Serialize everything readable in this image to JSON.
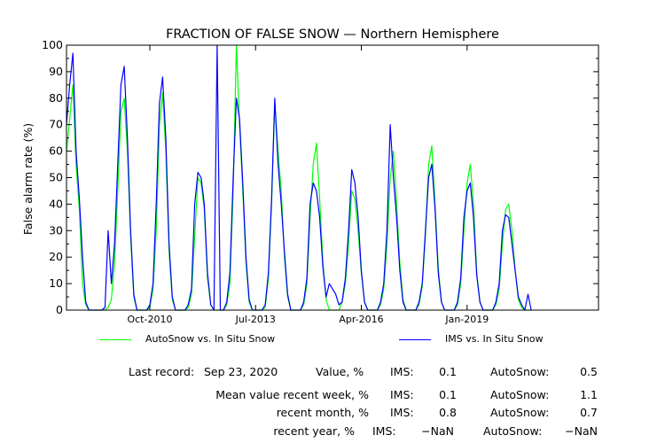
{
  "chart_data": {
    "type": "line",
    "title": "FRACTION OF FALSE SNOW — Northern Hemisphere",
    "ylabel": "False alarm rate (%)",
    "xlabel": "",
    "ylim": [
      0,
      100
    ],
    "yticks": [
      0,
      10,
      20,
      30,
      40,
      50,
      60,
      70,
      80,
      90,
      100
    ],
    "xlim": [
      "2008-08",
      "2022-06"
    ],
    "xticks": [
      {
        "date": "2010-10",
        "label": "Oct-2010"
      },
      {
        "date": "2013-07",
        "label": "Jul-2013"
      },
      {
        "date": "2016-04",
        "label": "Apr-2016"
      },
      {
        "date": "2019-01",
        "label": "Jan-2019"
      }
    ],
    "grid": false,
    "legend_position": "bottom",
    "series": [
      {
        "name": "AutoSnow vs. In Situ Snow",
        "color": "#00ff00",
        "x": [
          "2008-08",
          "2008-09",
          "2008-10",
          "2008-11",
          "2008-12",
          "2009-01",
          "2009-02",
          "2009-03",
          "2009-04",
          "2009-05",
          "2009-06",
          "2009-07",
          "2009-08",
          "2009-09",
          "2009-10",
          "2009-11",
          "2009-12",
          "2010-01",
          "2010-02",
          "2010-03",
          "2010-04",
          "2010-05",
          "2010-06",
          "2010-07",
          "2010-08",
          "2010-09",
          "2010-10",
          "2010-11",
          "2010-12",
          "2011-01",
          "2011-02",
          "2011-03",
          "2011-04",
          "2011-05",
          "2011-06",
          "2011-07",
          "2011-08",
          "2011-09",
          "2011-10",
          "2011-11",
          "2011-12",
          "2012-01",
          "2012-02",
          "2012-03",
          "2012-04",
          "2012-05",
          "2012-06",
          "2012-07",
          "2012-08",
          "2012-09",
          "2012-10",
          "2012-11",
          "2012-12",
          "2013-01",
          "2013-02",
          "2013-03",
          "2013-04",
          "2013-05",
          "2013-06",
          "2013-07",
          "2013-08",
          "2013-09",
          "2013-10",
          "2013-11",
          "2013-12",
          "2014-01",
          "2014-02",
          "2014-03",
          "2014-04",
          "2014-05",
          "2014-06",
          "2014-07",
          "2014-08",
          "2014-09",
          "2014-10",
          "2014-11",
          "2014-12",
          "2015-01",
          "2015-02",
          "2015-03",
          "2015-04",
          "2015-05",
          "2015-06",
          "2015-07",
          "2015-08",
          "2015-09",
          "2015-10",
          "2015-11",
          "2015-12",
          "2016-01",
          "2016-02",
          "2016-03",
          "2016-04",
          "2016-05",
          "2016-06",
          "2016-07",
          "2016-08",
          "2016-09",
          "2016-10",
          "2016-11",
          "2016-12",
          "2017-01",
          "2017-02",
          "2017-03",
          "2017-04",
          "2017-05",
          "2017-06",
          "2017-07",
          "2017-08",
          "2017-09",
          "2017-10",
          "2017-11",
          "2017-12",
          "2018-01",
          "2018-02",
          "2018-03",
          "2018-04",
          "2018-05",
          "2018-06",
          "2018-07",
          "2018-08",
          "2018-09",
          "2018-10",
          "2018-11",
          "2018-12",
          "2019-01",
          "2019-02",
          "2019-03",
          "2019-04",
          "2019-05",
          "2019-06",
          "2019-07",
          "2019-08",
          "2019-09",
          "2019-10",
          "2019-11",
          "2019-12",
          "2020-01",
          "2020-02",
          "2020-03",
          "2020-04",
          "2020-05",
          "2020-06",
          "2020-07",
          "2020-08",
          "2020-09"
        ],
        "values": [
          60,
          72,
          85,
          55,
          38,
          10,
          2,
          0,
          0,
          0,
          0,
          0,
          0,
          1,
          4,
          18,
          45,
          75,
          80,
          60,
          28,
          5,
          0,
          0,
          0,
          0,
          1,
          8,
          30,
          70,
          82,
          60,
          22,
          4,
          0,
          0,
          0,
          0,
          1,
          6,
          28,
          50,
          48,
          38,
          12,
          2,
          0,
          0,
          0,
          0,
          2,
          10,
          45,
          100,
          70,
          45,
          18,
          3,
          0,
          0,
          0,
          0,
          1,
          12,
          40,
          78,
          60,
          45,
          20,
          5,
          0,
          0,
          0,
          0,
          2,
          10,
          35,
          55,
          63,
          42,
          18,
          4,
          0,
          0,
          0,
          0,
          3,
          10,
          25,
          45,
          42,
          30,
          14,
          3,
          0,
          0,
          0,
          0,
          2,
          8,
          25,
          50,
          60,
          40,
          18,
          4,
          0,
          0,
          0,
          0,
          2,
          9,
          28,
          55,
          62,
          40,
          16,
          3,
          0,
          0,
          0,
          0,
          2,
          10,
          30,
          48,
          55,
          40,
          14,
          3,
          0,
          0,
          0,
          0,
          2,
          8,
          25,
          38,
          40,
          30,
          15,
          4,
          1,
          0,
          0,
          0
        ]
      },
      {
        "name": "IMS vs. In Situ Snow",
        "color": "#0000ff",
        "x": [
          "2008-08",
          "2008-09",
          "2008-10",
          "2008-11",
          "2008-12",
          "2009-01",
          "2009-02",
          "2009-03",
          "2009-04",
          "2009-05",
          "2009-06",
          "2009-07",
          "2009-08",
          "2009-09",
          "2009-10",
          "2009-11",
          "2009-12",
          "2010-01",
          "2010-02",
          "2010-03",
          "2010-04",
          "2010-05",
          "2010-06",
          "2010-07",
          "2010-08",
          "2010-09",
          "2010-10",
          "2010-11",
          "2010-12",
          "2011-01",
          "2011-02",
          "2011-03",
          "2011-04",
          "2011-05",
          "2011-06",
          "2011-07",
          "2011-08",
          "2011-09",
          "2011-10",
          "2011-11",
          "2011-12",
          "2012-01",
          "2012-02",
          "2012-03",
          "2012-04",
          "2012-05",
          "2012-06",
          "2012-07",
          "2012-08",
          "2012-09",
          "2012-10",
          "2012-11",
          "2012-12",
          "2013-01",
          "2013-02",
          "2013-03",
          "2013-04",
          "2013-05",
          "2013-06",
          "2013-07",
          "2013-08",
          "2013-09",
          "2013-10",
          "2013-11",
          "2013-12",
          "2014-01",
          "2014-02",
          "2014-03",
          "2014-04",
          "2014-05",
          "2014-06",
          "2014-07",
          "2014-08",
          "2014-09",
          "2014-10",
          "2014-11",
          "2014-12",
          "2015-01",
          "2015-02",
          "2015-03",
          "2015-04",
          "2015-05",
          "2015-06",
          "2015-07",
          "2015-08",
          "2015-09",
          "2015-10",
          "2015-11",
          "2015-12",
          "2016-01",
          "2016-02",
          "2016-03",
          "2016-04",
          "2016-05",
          "2016-06",
          "2016-07",
          "2016-08",
          "2016-09",
          "2016-10",
          "2016-11",
          "2016-12",
          "2017-01",
          "2017-02",
          "2017-03",
          "2017-04",
          "2017-05",
          "2017-06",
          "2017-07",
          "2017-08",
          "2017-09",
          "2017-10",
          "2017-11",
          "2017-12",
          "2018-01",
          "2018-02",
          "2018-03",
          "2018-04",
          "2018-05",
          "2018-06",
          "2018-07",
          "2018-08",
          "2018-09",
          "2018-10",
          "2018-11",
          "2018-12",
          "2019-01",
          "2019-02",
          "2019-03",
          "2019-04",
          "2019-05",
          "2019-06",
          "2019-07",
          "2019-08",
          "2019-09",
          "2019-10",
          "2019-11",
          "2019-12",
          "2020-01",
          "2020-02",
          "2020-03",
          "2020-04",
          "2020-05",
          "2020-06",
          "2020-07",
          "2020-08",
          "2020-09"
        ],
        "values": [
          70,
          85,
          97,
          60,
          42,
          20,
          3,
          0,
          0,
          0,
          0,
          0,
          1,
          30,
          10,
          25,
          55,
          85,
          92,
          65,
          30,
          6,
          0,
          0,
          0,
          0,
          2,
          10,
          40,
          78,
          88,
          65,
          25,
          5,
          0,
          0,
          0,
          0,
          2,
          8,
          40,
          52,
          50,
          40,
          14,
          2,
          0,
          100,
          0,
          0,
          3,
          14,
          50,
          80,
          72,
          48,
          20,
          4,
          0,
          0,
          0,
          0,
          2,
          14,
          42,
          80,
          55,
          40,
          22,
          6,
          0,
          0,
          0,
          0,
          3,
          12,
          40,
          48,
          45,
          35,
          16,
          5,
          10,
          8,
          6,
          2,
          3,
          12,
          30,
          53,
          48,
          35,
          15,
          3,
          0,
          0,
          0,
          0,
          3,
          10,
          30,
          70,
          50,
          35,
          15,
          3,
          0,
          0,
          0,
          0,
          3,
          10,
          30,
          50,
          55,
          38,
          14,
          3,
          0,
          0,
          0,
          0,
          3,
          12,
          35,
          45,
          48,
          35,
          13,
          3,
          0,
          0,
          0,
          0,
          3,
          10,
          30,
          36,
          35,
          25,
          15,
          5,
          2,
          0,
          6,
          0
        ]
      }
    ]
  },
  "legend": {
    "autosnow_label": "AutoSnow vs. In Situ Snow",
    "ims_label": "IMS vs. In Situ Snow"
  },
  "stats": {
    "last_record_label": "Last record:",
    "last_record_date": "Sep 23, 2020",
    "value_label": "Value, %",
    "mean_week_label": "Mean value recent week, %",
    "recent_month_label": "recent month, %",
    "recent_year_label": "recent year, %",
    "ims_label": "IMS:",
    "autosnow_label": "AutoSnow:",
    "value_ims": "0.1",
    "value_autosnow": "0.5",
    "week_ims": "0.1",
    "week_autosnow": "1.1",
    "month_ims": "0.8",
    "month_autosnow": "0.7",
    "year_ims": "−NaN",
    "year_autosnow": "−NaN"
  },
  "colors": {
    "autosnow": "#00ff00",
    "ims": "#0000ff",
    "axis": "#000000"
  }
}
